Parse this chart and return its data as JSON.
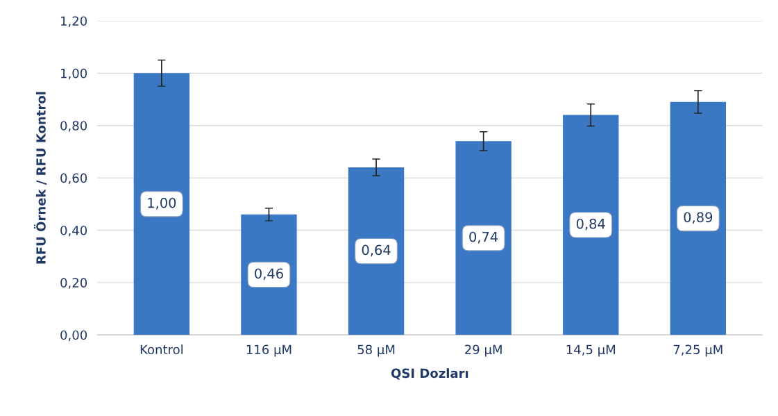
{
  "chart_data": {
    "type": "bar",
    "xlabel": "QSI Dozları",
    "ylabel": "RFU Örnek / RFU Kontrol",
    "categories": [
      "Kontrol",
      "116 µM",
      "58 µM",
      "29 µM",
      "14,5 µM",
      "7,25 µM"
    ],
    "values": [
      1.0,
      0.46,
      0.64,
      0.74,
      0.84,
      0.89
    ],
    "value_labels": [
      "1,00",
      "0,46",
      "0,64",
      "0,74",
      "0,84",
      "0,89"
    ],
    "errors": [
      0.05,
      0.024,
      0.032,
      0.036,
      0.042,
      0.043
    ],
    "color": "#3a78c4",
    "ylim": [
      0,
      1.2
    ],
    "yticks": [
      {
        "value": 0,
        "label": "0,00"
      },
      {
        "value": 0.2,
        "label": "0,20"
      },
      {
        "value": 0.4,
        "label": "0,40"
      },
      {
        "value": 0.6,
        "label": "0,60"
      },
      {
        "value": 0.8,
        "label": "0,80"
      },
      {
        "value": 1.0,
        "label": "1,00"
      },
      {
        "value": 1.2,
        "label": "1,20"
      }
    ],
    "grid": "y"
  }
}
